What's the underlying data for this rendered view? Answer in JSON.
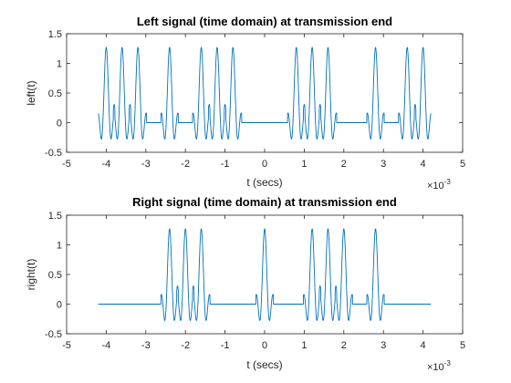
{
  "figure": {
    "background": "#ffffff",
    "line_color": "#0072BD",
    "axis_color": "#262626"
  },
  "chart_data": [
    {
      "type": "line",
      "title": "Left signal (time domain) at transmission end",
      "xlabel": "t (secs)",
      "ylabel": "left(t)",
      "xlim": [
        -0.005,
        0.005
      ],
      "ylim": [
        -0.5,
        1.5
      ],
      "x_scale_label": "×10",
      "x_scale_exponent": "-3",
      "xticks": [
        -5,
        -4,
        -3,
        -2,
        -1,
        0,
        1,
        2,
        3,
        4,
        5
      ],
      "xtick_labels": [
        "-5",
        "-4",
        "-3",
        "-2",
        "-1",
        "0",
        "1",
        "2",
        "3",
        "4",
        "5"
      ],
      "yticks": [
        -0.5,
        0,
        0.5,
        1,
        1.5
      ],
      "ytick_labels": [
        "-0.5",
        "0",
        "0.5",
        "1",
        "1.5"
      ],
      "signal_range": [
        -0.0042,
        0.0042
      ],
      "pulse_peak": 1.27,
      "pulse_centers": [
        -0.004,
        -0.0036,
        -0.0032,
        -0.0024,
        -0.0016,
        -0.0012,
        -0.0008,
        0.0008,
        0.0012,
        0.0016,
        0.0028,
        0.0036,
        0.004
      ],
      "series": [
        {
          "color": "#0072BD"
        }
      ]
    },
    {
      "type": "line",
      "title": "Right signal (time domain) at transmission end",
      "xlabel": "t (secs)",
      "ylabel": "right(t)",
      "xlim": [
        -0.005,
        0.005
      ],
      "ylim": [
        -0.5,
        1.5
      ],
      "x_scale_label": "×10",
      "x_scale_exponent": "-3",
      "xticks": [
        -5,
        -4,
        -3,
        -2,
        -1,
        0,
        1,
        2,
        3,
        4,
        5
      ],
      "xtick_labels": [
        "-5",
        "-4",
        "-3",
        "-2",
        "-1",
        "0",
        "1",
        "2",
        "3",
        "4",
        "5"
      ],
      "yticks": [
        -0.5,
        0,
        0.5,
        1,
        1.5
      ],
      "ytick_labels": [
        "-0.5",
        "0",
        "0.5",
        "1",
        "1.5"
      ],
      "signal_range": [
        -0.0042,
        0.0042
      ],
      "pulse_peak": 1.27,
      "pulse_centers": [
        -0.0024,
        -0.002,
        -0.0016,
        0,
        0.0012,
        0.0016,
        0.002,
        0.0028
      ],
      "series": [
        {
          "color": "#0072BD"
        }
      ]
    }
  ]
}
